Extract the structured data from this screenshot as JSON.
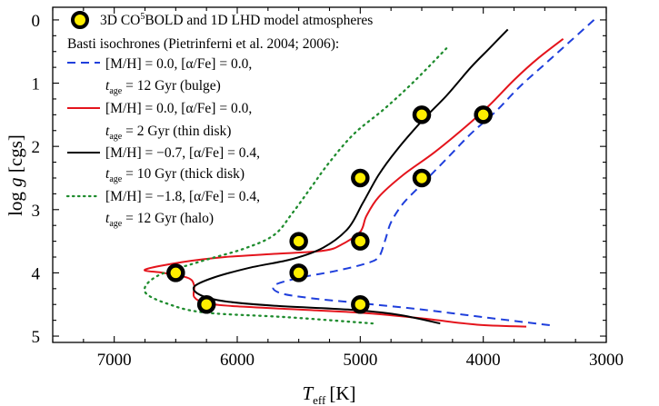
{
  "chart_data": {
    "type": "line",
    "xlabel": "T",
    "xlabel_sub": "eff",
    "xlabel_unit": "[K]",
    "ylabel": "log g [cgs]",
    "xlim": [
      7500,
      3000
    ],
    "ylim": [
      -0.2,
      5.1
    ],
    "x_reversed": true,
    "y_reversed": true,
    "x_ticks": [
      7000,
      6000,
      5000,
      4000,
      3000
    ],
    "y_ticks": [
      0,
      1,
      2,
      3,
      4,
      5
    ],
    "legend_position": "top-left",
    "models": {
      "name": "3D CO⁵BOLD and 1D LHD model atmospheres",
      "fill_color": "#ffee00",
      "edge_color": "#000000",
      "points": [
        {
          "teff": 4000,
          "logg": 1.5
        },
        {
          "teff": 4500,
          "logg": 1.5
        },
        {
          "teff": 4500,
          "logg": 2.5
        },
        {
          "teff": 5000,
          "logg": 2.5
        },
        {
          "teff": 5000,
          "logg": 3.5
        },
        {
          "teff": 5500,
          "logg": 3.5
        },
        {
          "teff": 5500,
          "logg": 4.0
        },
        {
          "teff": 6500,
          "logg": 4.0
        },
        {
          "teff": 5000,
          "logg": 4.5
        },
        {
          "teff": 6250,
          "logg": 4.5
        }
      ]
    },
    "legend_header": "Basti isochrones (Pietrinferni et al. 2004; 2006):",
    "series": [
      {
        "name_line1": "[M/H] = 0.0, [α/Fe] = 0.0,",
        "name_line2_t": "t",
        "name_line2_sub": "age",
        "name_line2_rest": " = 12 Gyr (bulge)",
        "color": "#1f3fdc",
        "style": "dashed",
        "points": [
          [
            3100,
            0.0
          ],
          [
            3300,
            0.35
          ],
          [
            3500,
            0.7
          ],
          [
            3700,
            1.05
          ],
          [
            3900,
            1.45
          ],
          [
            4100,
            1.8
          ],
          [
            4300,
            2.2
          ],
          [
            4500,
            2.6
          ],
          [
            4650,
            2.9
          ],
          [
            4750,
            3.2
          ],
          [
            4800,
            3.5
          ],
          [
            4850,
            3.75
          ],
          [
            4950,
            3.85
          ],
          [
            5200,
            3.97
          ],
          [
            5500,
            4.08
          ],
          [
            5700,
            4.2
          ],
          [
            5650,
            4.32
          ],
          [
            5400,
            4.4
          ],
          [
            5000,
            4.48
          ],
          [
            4500,
            4.58
          ],
          [
            4000,
            4.7
          ],
          [
            3450,
            4.83
          ]
        ]
      },
      {
        "name_line1": "[M/H] = 0.0, [α/Fe] = 0.0,",
        "name_line2_t": "t",
        "name_line2_sub": "age",
        "name_line2_rest": " = 2 Gyr (thin disk)",
        "color": "#e4141c",
        "style": "solid",
        "points": [
          [
            3350,
            0.3
          ],
          [
            3550,
            0.6
          ],
          [
            3750,
            0.95
          ],
          [
            3950,
            1.35
          ],
          [
            4150,
            1.7
          ],
          [
            4400,
            2.1
          ],
          [
            4650,
            2.45
          ],
          [
            4850,
            2.8
          ],
          [
            4950,
            3.1
          ],
          [
            5000,
            3.35
          ],
          [
            5150,
            3.55
          ],
          [
            5300,
            3.65
          ],
          [
            5700,
            3.7
          ],
          [
            6100,
            3.75
          ],
          [
            6450,
            3.83
          ],
          [
            6750,
            3.95
          ],
          [
            6600,
            4.0
          ],
          [
            6400,
            4.08
          ],
          [
            6350,
            4.2
          ],
          [
            6350,
            4.38
          ],
          [
            6250,
            4.48
          ],
          [
            6000,
            4.53
          ],
          [
            5500,
            4.58
          ],
          [
            5000,
            4.63
          ],
          [
            4500,
            4.72
          ],
          [
            4050,
            4.82
          ],
          [
            3650,
            4.85
          ]
        ]
      },
      {
        "name_line1": "[M/H] = −0.7, [α/Fe] = 0.4,",
        "name_line2_t": "t",
        "name_line2_sub": "age",
        "name_line2_rest": " = 10 Gyr (thick disk)",
        "color": "#000000",
        "style": "solid",
        "points": [
          [
            3800,
            0.15
          ],
          [
            3950,
            0.45
          ],
          [
            4100,
            0.75
          ],
          [
            4300,
            1.2
          ],
          [
            4500,
            1.6
          ],
          [
            4700,
            2.05
          ],
          [
            4850,
            2.45
          ],
          [
            4980,
            2.9
          ],
          [
            5100,
            3.3
          ],
          [
            5300,
            3.6
          ],
          [
            5550,
            3.78
          ],
          [
            5900,
            3.92
          ],
          [
            6200,
            4.08
          ],
          [
            6350,
            4.22
          ],
          [
            6300,
            4.35
          ],
          [
            6100,
            4.45
          ],
          [
            5700,
            4.52
          ],
          [
            5100,
            4.58
          ],
          [
            4700,
            4.66
          ],
          [
            4350,
            4.8
          ]
        ]
      },
      {
        "name_line1": "[M/H] = −1.8, [α/Fe] = 0.4,",
        "name_line2_t": "t",
        "name_line2_sub": "age",
        "name_line2_rest": " = 12 Gyr (halo)",
        "color": "#1f8c2e",
        "style": "dotted",
        "points": [
          [
            4300,
            0.45
          ],
          [
            4550,
            0.95
          ],
          [
            4800,
            1.4
          ],
          [
            5050,
            1.8
          ],
          [
            5250,
            2.25
          ],
          [
            5400,
            2.65
          ],
          [
            5550,
            3.05
          ],
          [
            5700,
            3.4
          ],
          [
            5950,
            3.62
          ],
          [
            6300,
            3.82
          ],
          [
            6650,
            4.05
          ],
          [
            6750,
            4.3
          ],
          [
            6550,
            4.5
          ],
          [
            6250,
            4.63
          ],
          [
            5600,
            4.7
          ],
          [
            4900,
            4.8
          ]
        ]
      }
    ]
  }
}
